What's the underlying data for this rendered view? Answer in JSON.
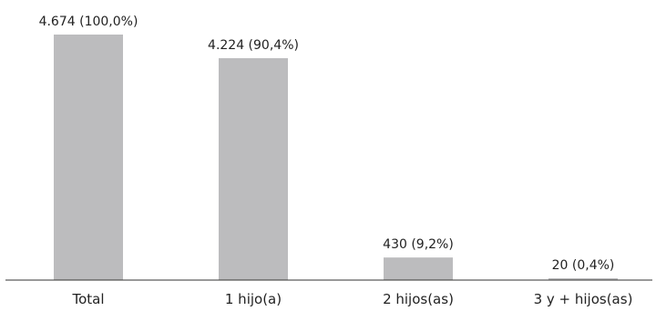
{
  "chart_data": {
    "type": "bar",
    "title": "",
    "xlabel": "",
    "ylabel": "",
    "categories": [
      "Total",
      "1 hijo(a)",
      "2 hijos(as)",
      "3 y + hijos(as)"
    ],
    "values": [
      4674,
      4224,
      430,
      20
    ],
    "data_labels": [
      "4.674 (100,0%)",
      "4.224 (90,4%)",
      "430 (9,2%)",
      "20 (0,4%)"
    ],
    "ylim": [
      0,
      4674
    ],
    "grid": false,
    "legend": "none",
    "bar_color": "#bcbcbe",
    "axis_color": "#333333",
    "text_color": "#222222"
  }
}
